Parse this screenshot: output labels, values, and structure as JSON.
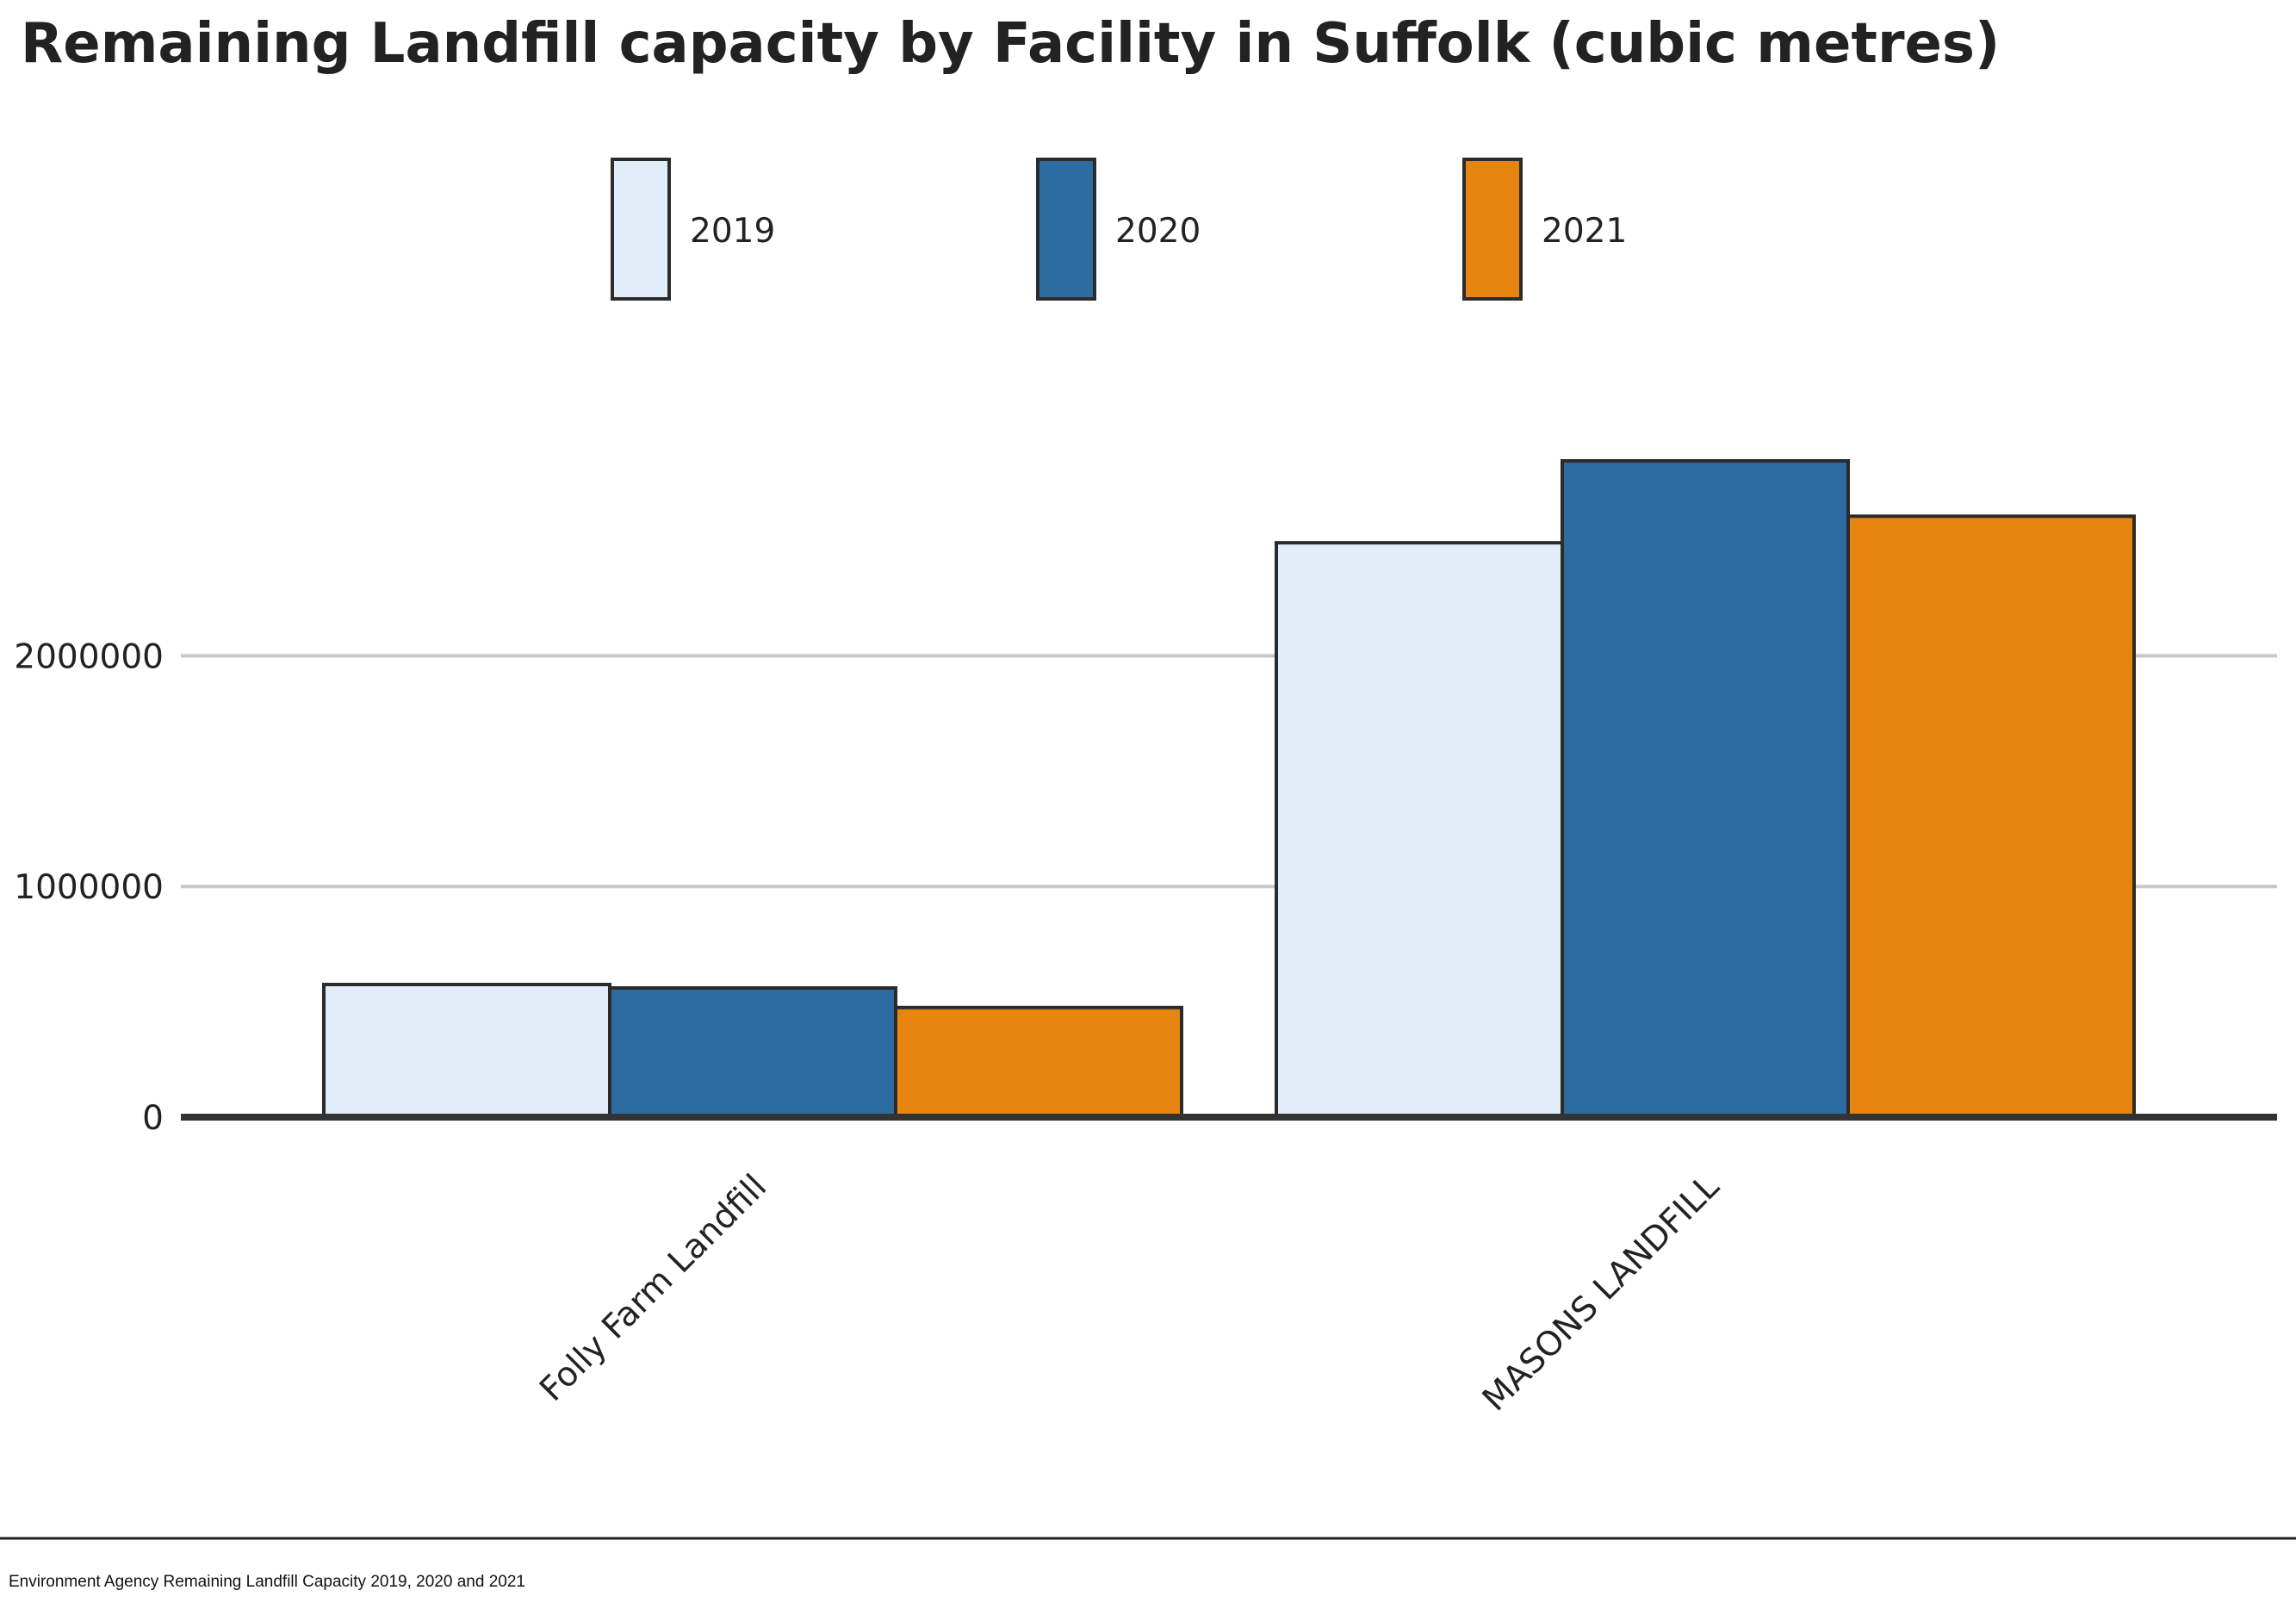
{
  "chart_data": {
    "type": "bar",
    "title": "Remaining Landfill capacity by Facility in Suffolk (cubic metres)",
    "xlabel": "",
    "ylabel": "",
    "categories": [
      "Folly Farm Landfill",
      "MASONS LANDFILL"
    ],
    "series": [
      {
        "name": "2019",
        "color": "#e1edf9",
        "values": [
          575000,
          2490000
        ]
      },
      {
        "name": "2020",
        "color": "#2d6ba1",
        "values": [
          560000,
          2845000
        ]
      },
      {
        "name": "2021",
        "color": "#e6850f",
        "values": [
          475000,
          2605000
        ]
      }
    ],
    "yticks": [
      0,
      1000000,
      2000000
    ],
    "ytick_labels": [
      "0",
      "1000000",
      "2000000"
    ],
    "ylim": [
      0,
      3200000
    ],
    "grid": true,
    "legend_position": "top",
    "source": "Environment Agency Remaining Landfill Capacity 2019, 2020 and 2021"
  }
}
